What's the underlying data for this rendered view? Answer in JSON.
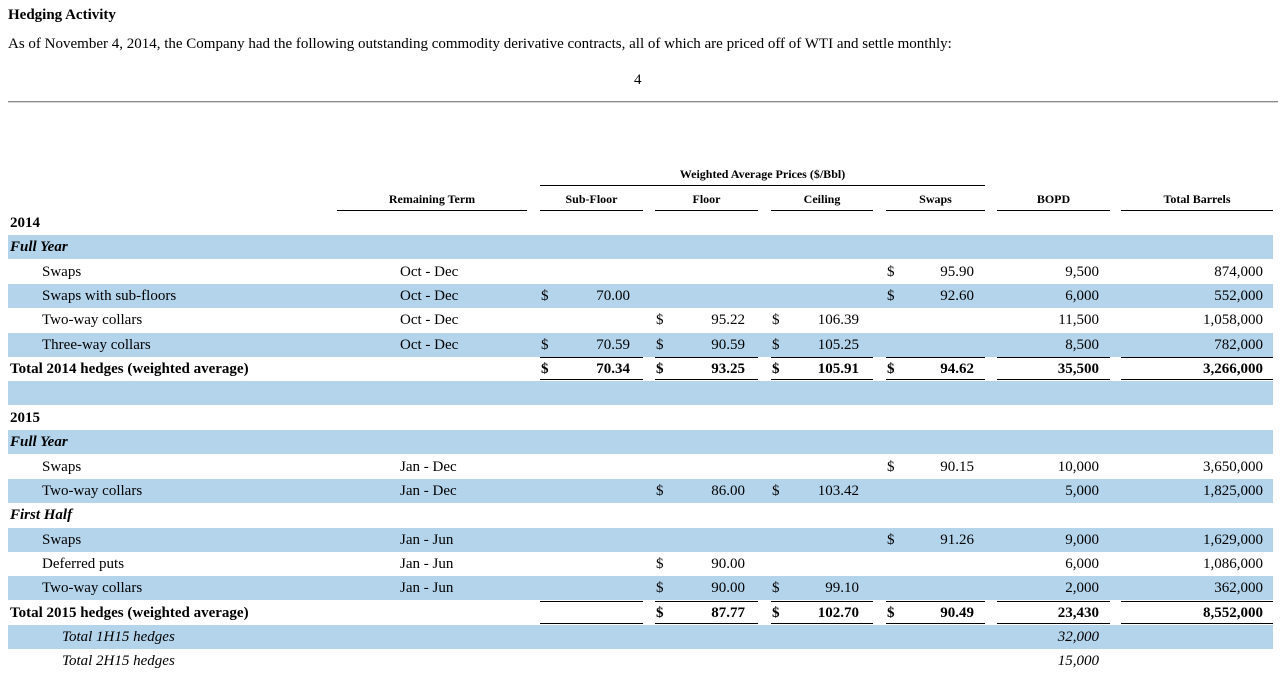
{
  "title": "Hedging Activity",
  "intro": "As of November 4, 2014, the Company had the following outstanding commodity derivative contracts, all of which are priced off of WTI and settle monthly:",
  "page_number": "4",
  "table": {
    "group_header": "Weighted Average Prices ($/Bbl)",
    "columns": {
      "term": "Remaining Term",
      "subfloor": "Sub-Floor",
      "floor": "Floor",
      "ceiling": "Ceiling",
      "swaps": "Swaps",
      "bopd": "BOPD",
      "total": "Total Barrels"
    },
    "rows": [
      {
        "label": "2014",
        "type": "year"
      },
      {
        "label": "Full Year",
        "type": "period"
      },
      {
        "label": "Swaps",
        "term": "Oct - Dec",
        "swaps_d": "$",
        "swaps": "95.90",
        "bopd": "9,500",
        "total": "874,000"
      },
      {
        "label": "Swaps with sub-floors",
        "term": "Oct - Dec",
        "subfloor_d": "$",
        "subfloor": "70.00",
        "swaps_d": "$",
        "swaps": "92.60",
        "bopd": "6,000",
        "total": "552,000"
      },
      {
        "label": "Two-way collars",
        "term": "Oct - Dec",
        "floor_d": "$",
        "floor": "95.22",
        "ceiling_d": "$",
        "ceiling": "106.39",
        "bopd": "11,500",
        "total": "1,058,000"
      },
      {
        "label": "Three-way collars",
        "term": "Oct - Dec",
        "subfloor_d": "$",
        "subfloor": "70.59",
        "floor_d": "$",
        "floor": "90.59",
        "ceiling_d": "$",
        "ceiling": "105.25",
        "bopd": "8,500",
        "total": "782,000"
      },
      {
        "label": "Total 2014 hedges (weighted average)",
        "type": "total",
        "subfloor_d": "$",
        "subfloor": "70.34",
        "floor_d": "$",
        "floor": "93.25",
        "ceiling_d": "$",
        "ceiling": "105.91",
        "swaps_d": "$",
        "swaps": "94.62",
        "bopd": "35,500",
        "total": "3,266,000"
      },
      {
        "label": "",
        "type": "blank"
      },
      {
        "label": "2015",
        "type": "year"
      },
      {
        "label": "Full Year",
        "type": "period"
      },
      {
        "label": "Swaps",
        "term": "Jan - Dec",
        "swaps_d": "$",
        "swaps": "90.15",
        "bopd": "10,000",
        "total": "3,650,000"
      },
      {
        "label": "Two-way collars",
        "term": "Jan - Dec",
        "floor_d": "$",
        "floor": "86.00",
        "ceiling_d": "$",
        "ceiling": "103.42",
        "bopd": "5,000",
        "total": "1,825,000"
      },
      {
        "label": "First Half",
        "type": "period"
      },
      {
        "label": "Swaps",
        "term": "Jan - Jun",
        "swaps_d": "$",
        "swaps": "91.26",
        "bopd": "9,000",
        "total": "1,629,000"
      },
      {
        "label": "Deferred puts",
        "term": "Jan - Jun",
        "floor_d": "$",
        "floor": "90.00",
        "bopd": "6,000",
        "total": "1,086,000"
      },
      {
        "label": "Two-way collars",
        "term": "Jan - Jun",
        "floor_d": "$",
        "floor": "90.00",
        "ceiling_d": "$",
        "ceiling": "99.10",
        "bopd": "2,000",
        "total": "362,000"
      },
      {
        "label": "Total 2015 hedges (weighted average)",
        "type": "total",
        "floor_d": "$",
        "floor": "87.77",
        "ceiling_d": "$",
        "ceiling": "102.70",
        "swaps_d": "$",
        "swaps": "90.49",
        "bopd": "23,430",
        "total": "8,552,000"
      },
      {
        "label": "Total 1H15 hedges",
        "type": "sub",
        "bopd": "32,000"
      },
      {
        "label": "Total 2H15 hedges",
        "type": "sub",
        "bopd": "15,000"
      }
    ]
  },
  "colors": {
    "row_shade": "#b4d4ec"
  }
}
